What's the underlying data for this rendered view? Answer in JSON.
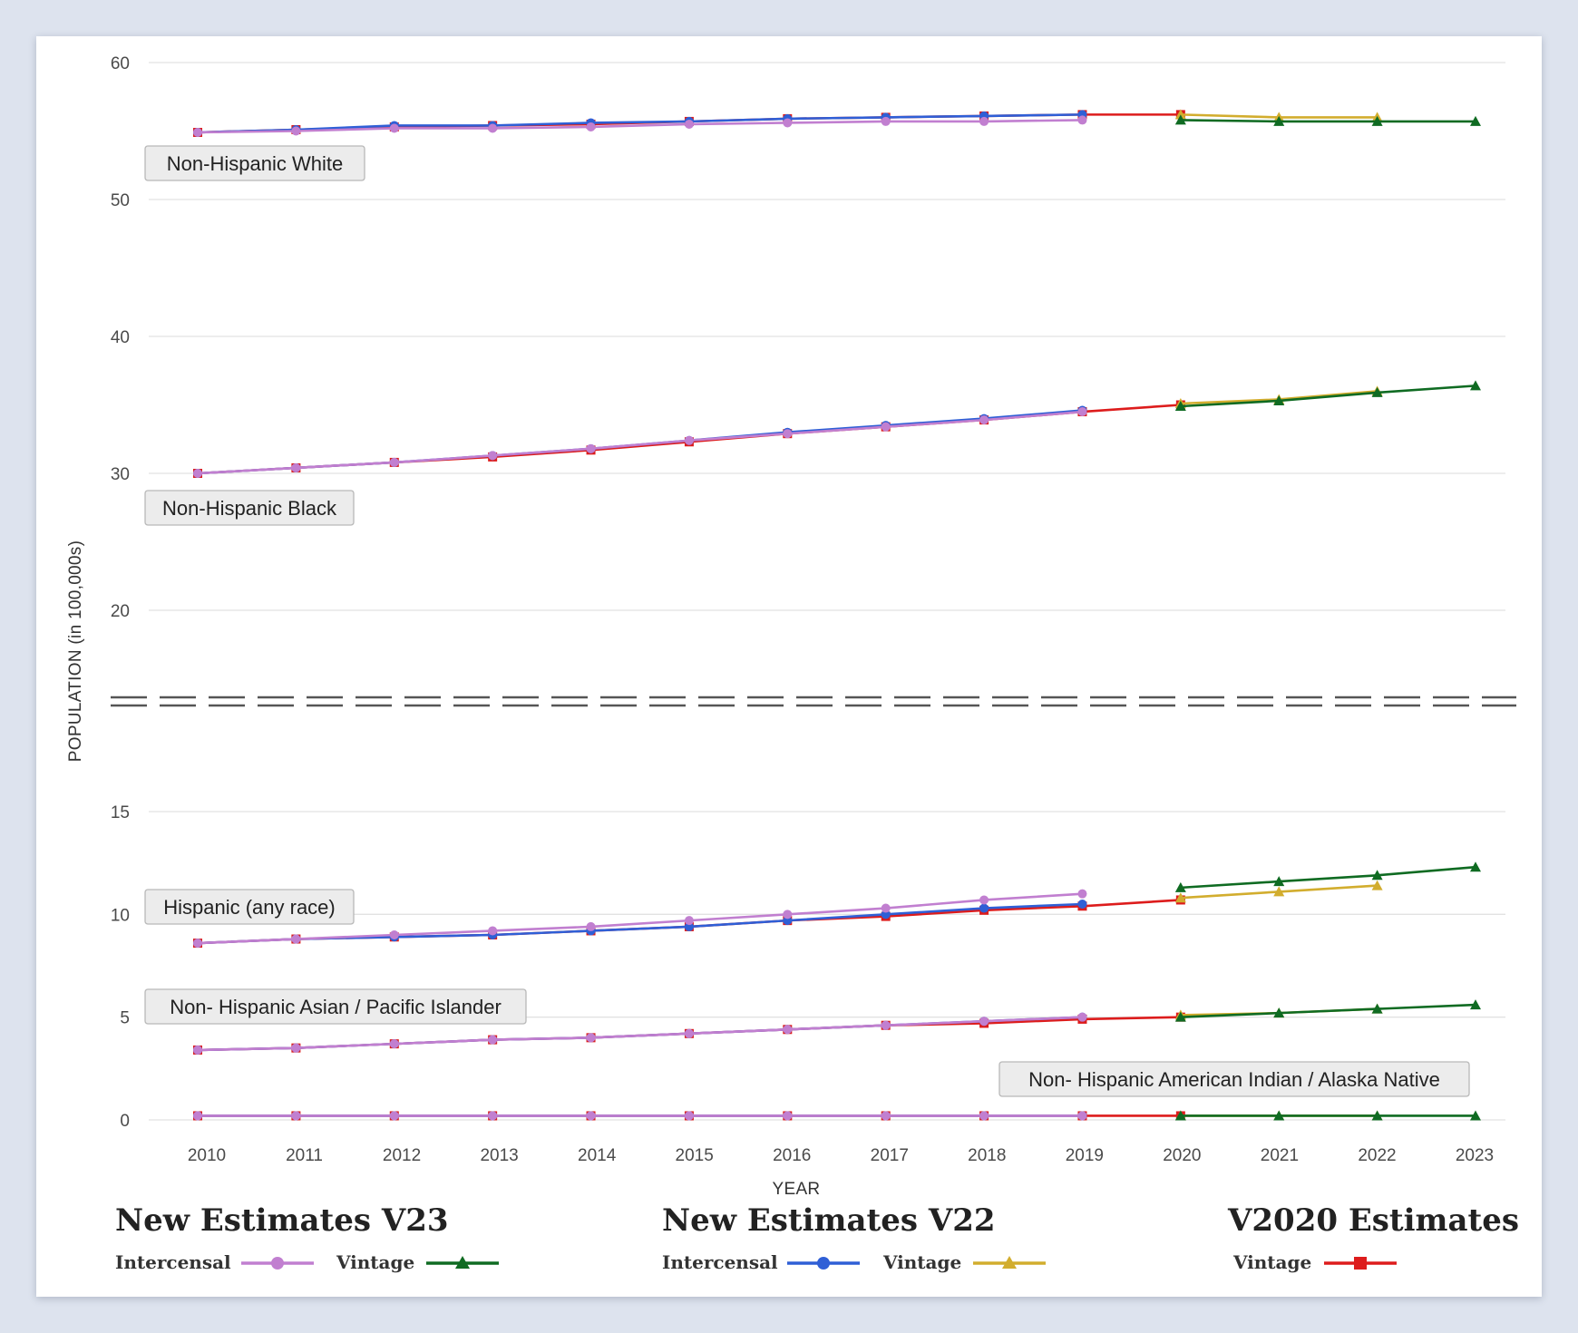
{
  "chart_data": {
    "type": "line",
    "xlabel": "YEAR",
    "ylabel": "POPULATION (in 100,000s)",
    "x_ticks": [
      "2010",
      "2011",
      "2012",
      "2013",
      "2014",
      "2015",
      "2016",
      "2017",
      "2018",
      "2019",
      "2020",
      "2021",
      "2022",
      "2023"
    ],
    "y_ticks_upper": [
      "60",
      "50",
      "40",
      "30",
      "20"
    ],
    "y_ticks_lower": [
      "15",
      "10",
      "5",
      "0"
    ],
    "axis_break": "between 20 and 15",
    "upper_panel_range": [
      20,
      60
    ],
    "lower_panel_range": [
      0,
      15
    ],
    "series_styles": [
      {
        "key": "v23_intercensal",
        "name": "Intercensal",
        "group": "New Estimates V23",
        "color": "#c17fd0",
        "marker": "circle"
      },
      {
        "key": "v23_vintage",
        "name": "Vintage",
        "group": "New Estimates V23",
        "color": "#0f6b22",
        "marker": "triangle"
      },
      {
        "key": "v22_intercensal",
        "name": "Intercensal",
        "group": "New Estimates V22",
        "color": "#2f5fd6",
        "marker": "circle"
      },
      {
        "key": "v22_vintage",
        "name": "Vintage",
        "group": "New Estimates V22",
        "color": "#d2ad2e",
        "marker": "triangle"
      },
      {
        "key": "v2020_vintage",
        "name": "Vintage",
        "group": "V2020 Estimates",
        "color": "#dd1c1c",
        "marker": "square"
      }
    ],
    "groups": [
      {
        "label": "Non-Hispanic White",
        "panel": "upper",
        "series": {
          "v2020_vintage": {
            "x": [
              2010,
              2011,
              2012,
              2013,
              2014,
              2015,
              2016,
              2017,
              2018,
              2019,
              2020
            ],
            "y": [
              54.9,
              55.1,
              55.3,
              55.4,
              55.5,
              55.7,
              55.9,
              56.0,
              56.1,
              56.2,
              56.2
            ]
          },
          "v22_intercensal": {
            "x": [
              2010,
              2011,
              2012,
              2013,
              2014,
              2015,
              2016,
              2017,
              2018,
              2019
            ],
            "y": [
              54.9,
              55.1,
              55.4,
              55.4,
              55.6,
              55.7,
              55.9,
              56.0,
              56.1,
              56.2
            ]
          },
          "v23_intercensal": {
            "x": [
              2010,
              2011,
              2012,
              2013,
              2014,
              2015,
              2016,
              2017,
              2018,
              2019
            ],
            "y": [
              54.9,
              55.0,
              55.2,
              55.2,
              55.3,
              55.5,
              55.6,
              55.7,
              55.7,
              55.8
            ]
          },
          "v22_vintage": {
            "x": [
              2020,
              2021,
              2022
            ],
            "y": [
              56.2,
              56.0,
              56.0
            ]
          },
          "v23_vintage": {
            "x": [
              2020,
              2021,
              2022,
              2023
            ],
            "y": [
              55.8,
              55.7,
              55.7,
              55.7
            ]
          }
        }
      },
      {
        "label": "Non-Hispanic Black",
        "panel": "upper",
        "series": {
          "v2020_vintage": {
            "x": [
              2010,
              2011,
              2012,
              2013,
              2014,
              2015,
              2016,
              2017,
              2018,
              2019,
              2020
            ],
            "y": [
              30.0,
              30.4,
              30.8,
              31.2,
              31.7,
              32.3,
              32.9,
              33.4,
              33.9,
              34.5,
              35.0
            ]
          },
          "v22_intercensal": {
            "x": [
              2010,
              2011,
              2012,
              2013,
              2014,
              2015,
              2016,
              2017,
              2018,
              2019
            ],
            "y": [
              30.0,
              30.4,
              30.8,
              31.3,
              31.8,
              32.4,
              33.0,
              33.5,
              34.0,
              34.6
            ]
          },
          "v23_intercensal": {
            "x": [
              2010,
              2011,
              2012,
              2013,
              2014,
              2015,
              2016,
              2017,
              2018,
              2019
            ],
            "y": [
              30.0,
              30.4,
              30.8,
              31.3,
              31.8,
              32.4,
              32.9,
              33.4,
              33.9,
              34.5
            ]
          },
          "v22_vintage": {
            "x": [
              2020,
              2021,
              2022
            ],
            "y": [
              35.1,
              35.4,
              36.0
            ]
          },
          "v23_vintage": {
            "x": [
              2020,
              2021,
              2022,
              2023
            ],
            "y": [
              34.9,
              35.3,
              35.9,
              36.4
            ]
          }
        }
      },
      {
        "label": "Hispanic (any race)",
        "panel": "lower",
        "series": {
          "v2020_vintage": {
            "x": [
              2010,
              2011,
              2012,
              2013,
              2014,
              2015,
              2016,
              2017,
              2018,
              2019,
              2020
            ],
            "y": [
              8.6,
              8.8,
              8.9,
              9.0,
              9.2,
              9.4,
              9.7,
              9.9,
              10.2,
              10.4,
              10.7
            ]
          },
          "v22_intercensal": {
            "x": [
              2010,
              2011,
              2012,
              2013,
              2014,
              2015,
              2016,
              2017,
              2018,
              2019
            ],
            "y": [
              8.6,
              8.8,
              8.9,
              9.0,
              9.2,
              9.4,
              9.7,
              10.0,
              10.3,
              10.5
            ]
          },
          "v23_intercensal": {
            "x": [
              2010,
              2011,
              2012,
              2013,
              2014,
              2015,
              2016,
              2017,
              2018,
              2019
            ],
            "y": [
              8.6,
              8.8,
              9.0,
              9.2,
              9.4,
              9.7,
              10.0,
              10.3,
              10.7,
              11.0
            ]
          },
          "v22_vintage": {
            "x": [
              2020,
              2021,
              2022
            ],
            "y": [
              10.8,
              11.1,
              11.4
            ]
          },
          "v23_vintage": {
            "x": [
              2020,
              2021,
              2022,
              2023
            ],
            "y": [
              11.3,
              11.6,
              11.9,
              12.3
            ]
          }
        }
      },
      {
        "label": "Non- Hispanic Asian / Pacific Islander",
        "panel": "lower",
        "series": {
          "v2020_vintage": {
            "x": [
              2010,
              2011,
              2012,
              2013,
              2014,
              2015,
              2016,
              2017,
              2018,
              2019,
              2020
            ],
            "y": [
              3.4,
              3.5,
              3.7,
              3.9,
              4.0,
              4.2,
              4.4,
              4.6,
              4.7,
              4.9,
              5.0
            ]
          },
          "v22_intercensal": {
            "x": [
              2010,
              2011,
              2012,
              2013,
              2014,
              2015,
              2016,
              2017,
              2018,
              2019
            ],
            "y": [
              3.4,
              3.5,
              3.7,
              3.9,
              4.0,
              4.2,
              4.4,
              4.6,
              4.8,
              5.0
            ]
          },
          "v23_intercensal": {
            "x": [
              2010,
              2011,
              2012,
              2013,
              2014,
              2015,
              2016,
              2017,
              2018,
              2019
            ],
            "y": [
              3.4,
              3.5,
              3.7,
              3.9,
              4.0,
              4.2,
              4.4,
              4.6,
              4.8,
              5.0
            ]
          },
          "v22_vintage": {
            "x": [
              2020,
              2021,
              2022
            ],
            "y": [
              5.1,
              5.2,
              5.4
            ]
          },
          "v23_vintage": {
            "x": [
              2020,
              2021,
              2022,
              2023
            ],
            "y": [
              5.0,
              5.2,
              5.4,
              5.6
            ]
          }
        }
      },
      {
        "label": "Non- Hispanic American Indian / Alaska Native",
        "panel": "lower",
        "series": {
          "v2020_vintage": {
            "x": [
              2010,
              2011,
              2012,
              2013,
              2014,
              2015,
              2016,
              2017,
              2018,
              2019,
              2020
            ],
            "y": [
              0.2,
              0.2,
              0.2,
              0.2,
              0.2,
              0.2,
              0.2,
              0.2,
              0.2,
              0.2,
              0.2
            ]
          },
          "v22_intercensal": {
            "x": [
              2010,
              2011,
              2012,
              2013,
              2014,
              2015,
              2016,
              2017,
              2018,
              2019
            ],
            "y": [
              0.2,
              0.2,
              0.2,
              0.2,
              0.2,
              0.2,
              0.2,
              0.2,
              0.2,
              0.2
            ]
          },
          "v23_intercensal": {
            "x": [
              2010,
              2011,
              2012,
              2013,
              2014,
              2015,
              2016,
              2017,
              2018,
              2019
            ],
            "y": [
              0.2,
              0.2,
              0.2,
              0.2,
              0.2,
              0.2,
              0.2,
              0.2,
              0.2,
              0.2
            ]
          },
          "v22_vintage": {
            "x": [
              2020,
              2021,
              2022
            ],
            "y": [
              0.2,
              0.2,
              0.2
            ]
          },
          "v23_vintage": {
            "x": [
              2020,
              2021,
              2022,
              2023
            ],
            "y": [
              0.2,
              0.2,
              0.2,
              0.2
            ]
          }
        }
      }
    ]
  },
  "legend": {
    "v23": {
      "title": "New Estimates V23",
      "intercensal": "Intercensal",
      "vintage": "Vintage"
    },
    "v22": {
      "title": "New Estimates V22",
      "intercensal": "Intercensal",
      "vintage": "Vintage"
    },
    "v2020": {
      "title": "V2020 Estimates",
      "vintage": "Vintage"
    }
  }
}
